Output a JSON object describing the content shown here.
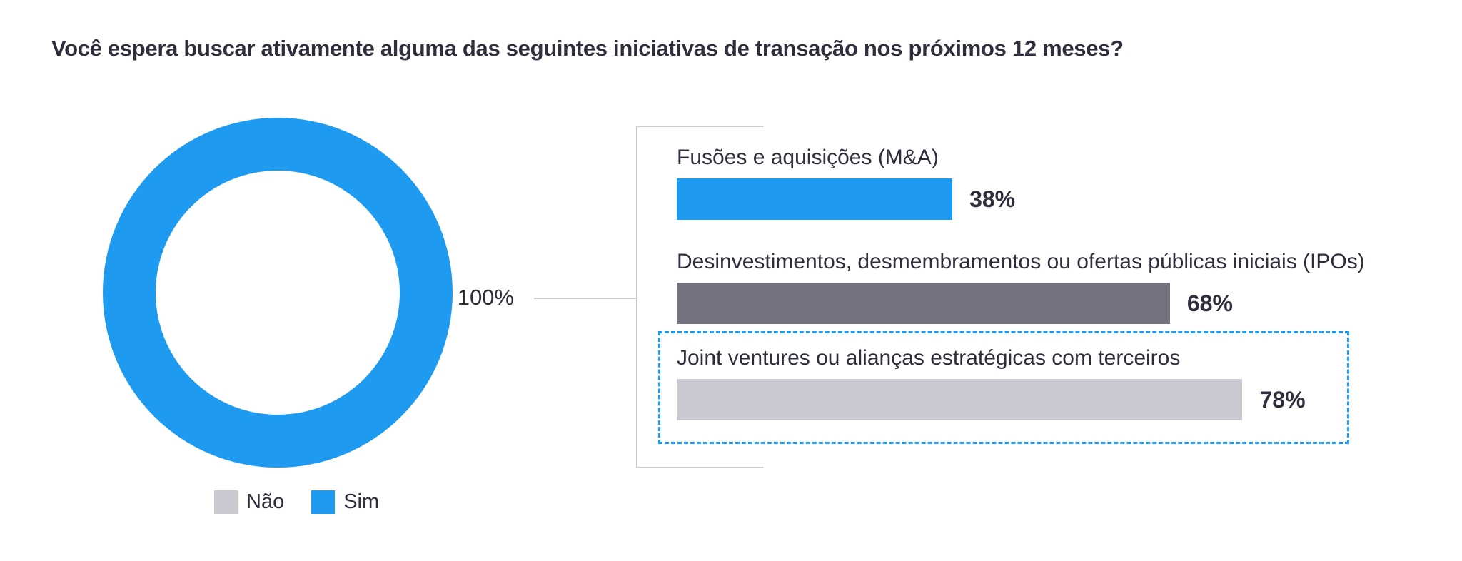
{
  "title": "Você espera buscar ativamente alguma das seguintes iniciativas de transação nos próximos 12 meses?",
  "colors": {
    "accent_blue": "#1e9bf0",
    "dark_gray": "#72737e",
    "light_gray": "#c8c9d1",
    "text": "#2e2e3d",
    "bracket_line": "#c7c7c9",
    "background": "#ffffff"
  },
  "donut": {
    "percent_label": "100%"
  },
  "legend": {
    "items": [
      {
        "label": "Não",
        "color": "#c8c9d1"
      },
      {
        "label": "Sim",
        "color": "#1e9bf0"
      }
    ]
  },
  "bars": {
    "items": [
      {
        "label": "Fusões e aquisições (M&A)",
        "value": 38,
        "value_label": "38%",
        "color": "#1e9bf0",
        "highlighted": false
      },
      {
        "label": "Desinvestimentos, desmembramentos ou ofertas públicas iniciais (IPOs)",
        "value": 68,
        "value_label": "68%",
        "color": "#72737e",
        "highlighted": false
      },
      {
        "label": "Joint ventures ou alianças estratégicas com terceiros",
        "value": 78,
        "value_label": "78%",
        "color": "#c8c9d1",
        "highlighted": true
      }
    ]
  },
  "chart_data": [
    {
      "type": "pie",
      "variant": "donut",
      "labels": [
        "Sim",
        "Não"
      ],
      "values": [
        100,
        0
      ],
      "unit": "%",
      "colors": [
        "#1e9bf0",
        "#c8c9d1"
      ],
      "outer_label": "100%",
      "legend_position": "bottom",
      "title": "Você espera buscar ativamente alguma das seguintes iniciativas de transação nos próximos 12 meses?"
    },
    {
      "type": "bar",
      "orientation": "horizontal",
      "categories": [
        "Fusões e aquisições (M&A)",
        "Desinvestimentos, desmembramentos ou ofertas públicas iniciais (IPOs)",
        "Joint ventures ou alianças estratégicas com terceiros"
      ],
      "values": [
        38,
        68,
        78
      ],
      "unit": "%",
      "xlim": [
        0,
        100
      ],
      "grid": false,
      "data_labels": [
        "38%",
        "68%",
        "78%"
      ],
      "highlighted_category": "Joint ventures ou alianças estratégicas com terceiros",
      "bar_colors": [
        "#1e9bf0",
        "#72737e",
        "#c8c9d1"
      ]
    }
  ]
}
